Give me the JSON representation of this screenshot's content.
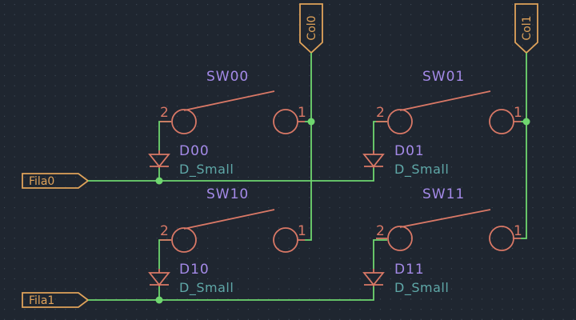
{
  "colors": {
    "background": "#1f2630",
    "grid": "#3b4654",
    "wire": "#6fd66f",
    "symbol": "#d97866",
    "reference": "#a48ae8",
    "value": "#5fa8a8",
    "label": "#e0a35a"
  },
  "labels": {
    "col0": "Col0",
    "col1": "Col1",
    "fila0": "Fila0",
    "fila1": "Fila1"
  },
  "switches": [
    {
      "ref": "SW00",
      "pin_left": "2",
      "pin_right": "1"
    },
    {
      "ref": "SW01",
      "pin_left": "2",
      "pin_right": "1"
    },
    {
      "ref": "SW10",
      "pin_left": "2",
      "pin_right": "1"
    },
    {
      "ref": "SW11",
      "pin_left": "2",
      "pin_right": "1"
    }
  ],
  "diodes": [
    {
      "ref": "D00",
      "value": "D_Small"
    },
    {
      "ref": "D01",
      "value": "D_Small"
    },
    {
      "ref": "D10",
      "value": "D_Small"
    },
    {
      "ref": "D11",
      "value": "D_Small"
    }
  ]
}
